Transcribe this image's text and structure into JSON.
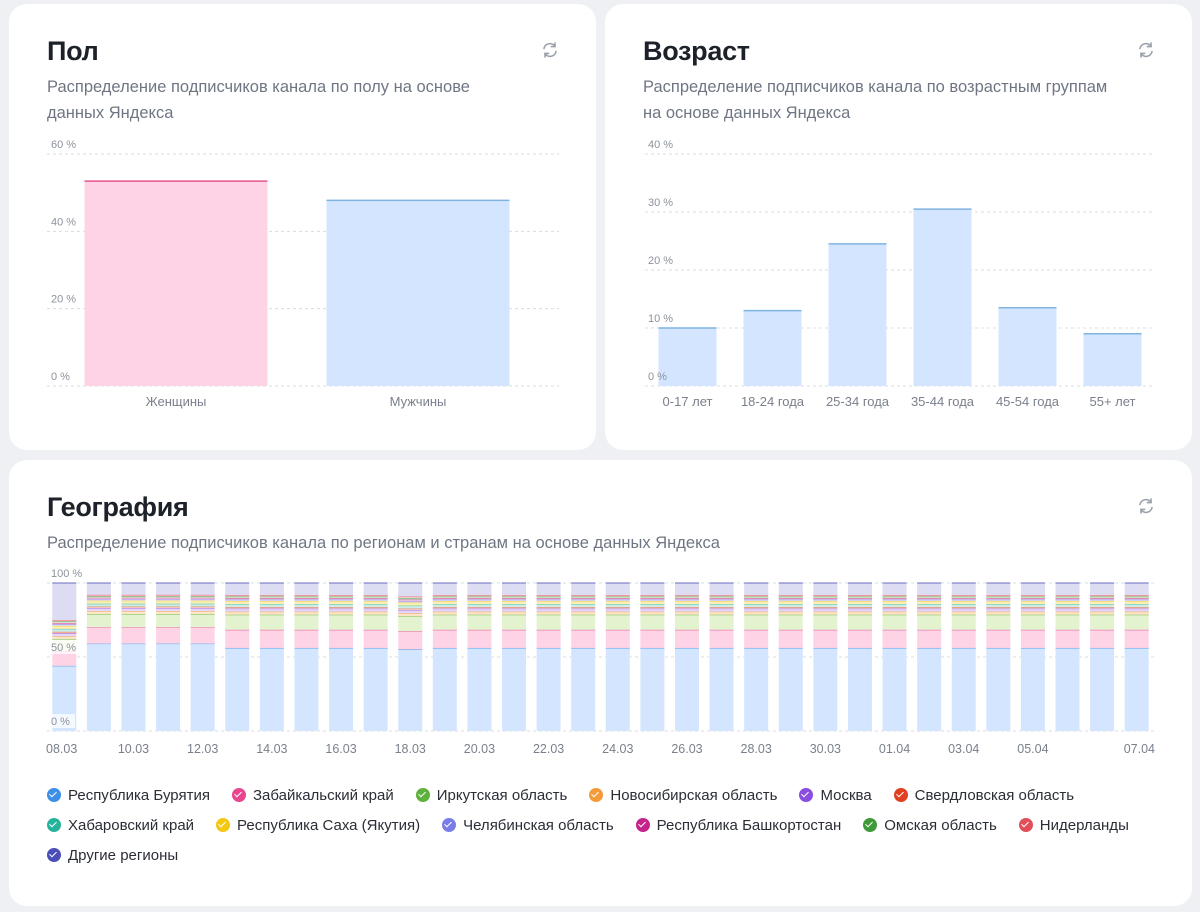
{
  "gender": {
    "title": "Пол",
    "subtitle": "Распределение подписчиков канала по полу на основе данных Яндекса",
    "chart_data": {
      "type": "bar",
      "categories": [
        "Женщины",
        "Мужчины"
      ],
      "values": [
        53,
        48
      ],
      "colors": [
        "#ffd3e6",
        "#d4e6ff"
      ],
      "line_colors": [
        "#e8528f",
        "#7fb3e0"
      ],
      "yticks": [
        "0 %",
        "20 %",
        "40 %",
        "60 %"
      ],
      "ylim": [
        0,
        60
      ]
    }
  },
  "age": {
    "title": "Возраст",
    "subtitle": "Распределение подписчиков канала по возрастным группам на основе данных Яндекса",
    "chart_data": {
      "type": "bar",
      "categories": [
        "0-17 лет",
        "18-24 года",
        "25-34 года",
        "35-44 года",
        "45-54 года",
        "55+ лет"
      ],
      "values": [
        10,
        13,
        24.5,
        30.5,
        13.5,
        9
      ],
      "yticks": [
        "0 %",
        "10 %",
        "20 %",
        "30 %",
        "40 %"
      ],
      "ylim": [
        0,
        40
      ]
    }
  },
  "geo": {
    "title": "География",
    "subtitle": "Распределение подписчиков канала по регионам и странам на основе данных Яндекса",
    "chart_data": {
      "type": "bar",
      "stacked": true,
      "yticks": [
        "0 %",
        "50 %",
        "100 %"
      ],
      "ylim": [
        0,
        100
      ],
      "x_ticks": [
        "08.03",
        "10.03",
        "12.03",
        "14.03",
        "16.03",
        "18.03",
        "20.03",
        "22.03",
        "24.03",
        "26.03",
        "28.03",
        "30.03",
        "01.04",
        "03.04",
        "05.04",
        "07.04"
      ],
      "days": 32,
      "series": [
        {
          "name": "Республика Бурятия",
          "color": "#3d8fe8",
          "fill": "#d4e6ff",
          "values": [
            44,
            59,
            59,
            59,
            59,
            55,
            55,
            55,
            55,
            55,
            54,
            55,
            55,
            55,
            55,
            55,
            55,
            55,
            55,
            55,
            55,
            55,
            55,
            55,
            55,
            55,
            55,
            55,
            55,
            55,
            55,
            55
          ]
        },
        {
          "name": "Забайкальский край",
          "color": "#e8468f",
          "fill": "#ffd3e6",
          "values": [
            10,
            11,
            11,
            11,
            11,
            12,
            12,
            12,
            12,
            12,
            12,
            12,
            12,
            12,
            12,
            12,
            12,
            12,
            12,
            12,
            12,
            12,
            12,
            12,
            12,
            12,
            12,
            12,
            12,
            12,
            12,
            12
          ]
        },
        {
          "name": "Иркутская область",
          "color": "#5eb13b",
          "fill": "#e3f3d0",
          "values": [
            8,
            9,
            9,
            9,
            9,
            10,
            10,
            10,
            10,
            10,
            10,
            10,
            10,
            10,
            10,
            10,
            10,
            10,
            10,
            10,
            10,
            10,
            10,
            10,
            10,
            10,
            10,
            10,
            10,
            10,
            10,
            10
          ]
        },
        {
          "name": "Новосибирская область",
          "color": "#f59a3b",
          "fill": "#fde6c8",
          "values": [
            2,
            2,
            2,
            2,
            2,
            2,
            2,
            2,
            2,
            2,
            2,
            2,
            2,
            2,
            2,
            2,
            2,
            2,
            2,
            2,
            2,
            2,
            2,
            2,
            2,
            2,
            2,
            2,
            2,
            2,
            2,
            2
          ]
        },
        {
          "name": "Москва",
          "color": "#8a4ee0",
          "fill": "#e3d6fa",
          "values": [
            2,
            2,
            2,
            2,
            2,
            2,
            2,
            2,
            2,
            2,
            2,
            2,
            2,
            2,
            2,
            2,
            2,
            2,
            2,
            2,
            2,
            2,
            2,
            2,
            2,
            2,
            2,
            2,
            2,
            2,
            2,
            2
          ]
        },
        {
          "name": "Свердловская область",
          "color": "#e0401f",
          "fill": "#fbd3c8",
          "values": [
            1,
            1,
            1,
            1,
            1,
            1,
            1,
            1,
            1,
            1,
            1,
            1,
            1,
            1,
            1,
            1,
            1,
            1,
            1,
            1,
            1,
            1,
            1,
            1,
            1,
            1,
            1,
            1,
            1,
            1,
            1,
            1
          ]
        },
        {
          "name": "Хабаровский край",
          "color": "#27b39b",
          "fill": "#cdeee6",
          "values": [
            2,
            2,
            2,
            2,
            2,
            2,
            2,
            2,
            2,
            2,
            2,
            2,
            2,
            2,
            2,
            2,
            2,
            2,
            2,
            2,
            2,
            2,
            2,
            2,
            2,
            2,
            2,
            2,
            2,
            2,
            2,
            2
          ]
        },
        {
          "name": "Республика Саха (Якутия)",
          "color": "#f2c812",
          "fill": "#fbefb6",
          "values": [
            2,
            2,
            2,
            2,
            2,
            2,
            2,
            2,
            2,
            2,
            2,
            2,
            2,
            2,
            2,
            2,
            2,
            2,
            2,
            2,
            2,
            2,
            2,
            2,
            2,
            2,
            2,
            2,
            2,
            2,
            2,
            2
          ]
        },
        {
          "name": "Челябинская область",
          "color": "#7a7de8",
          "fill": "#dcdcf8",
          "values": [
            1,
            1,
            1,
            1,
            1,
            1,
            1,
            1,
            1,
            1,
            1,
            1,
            1,
            1,
            1,
            1,
            1,
            1,
            1,
            1,
            1,
            1,
            1,
            1,
            1,
            1,
            1,
            1,
            1,
            1,
            1,
            1
          ]
        },
        {
          "name": "Республика Башкортостан",
          "color": "#c3258a",
          "fill": "#f4cde4",
          "values": [
            1,
            1,
            1,
            1,
            1,
            1,
            1,
            1,
            1,
            1,
            1,
            1,
            1,
            1,
            1,
            1,
            1,
            1,
            1,
            1,
            1,
            1,
            1,
            1,
            1,
            1,
            1,
            1,
            1,
            1,
            1,
            1
          ]
        },
        {
          "name": "Омская область",
          "color": "#3f9a3a",
          "fill": "#d3ecd0",
          "values": [
            1,
            1,
            1,
            1,
            1,
            1,
            1,
            1,
            1,
            1,
            1,
            1,
            1,
            1,
            1,
            1,
            1,
            1,
            1,
            1,
            1,
            1,
            1,
            1,
            1,
            1,
            1,
            1,
            1,
            1,
            1,
            1
          ]
        },
        {
          "name": "Нидерланды",
          "color": "#e04f5a",
          "fill": "#fbd0d3",
          "values": [
            1,
            1,
            1,
            1,
            1,
            1,
            1,
            1,
            1,
            1,
            1,
            1,
            1,
            1,
            1,
            1,
            1,
            1,
            1,
            1,
            1,
            1,
            1,
            1,
            1,
            1,
            1,
            1,
            1,
            1,
            1,
            1
          ]
        },
        {
          "name": "Другие регионы",
          "color": "#4a4fb8",
          "fill": "#dcdcf3",
          "values": [
            25,
            8,
            8,
            8,
            8,
            8,
            8,
            8,
            8,
            8,
            9,
            8,
            8,
            8,
            8,
            8,
            8,
            8,
            8,
            8,
            8,
            8,
            8,
            8,
            8,
            8,
            8,
            8,
            8,
            8,
            8,
            8
          ]
        }
      ]
    }
  }
}
